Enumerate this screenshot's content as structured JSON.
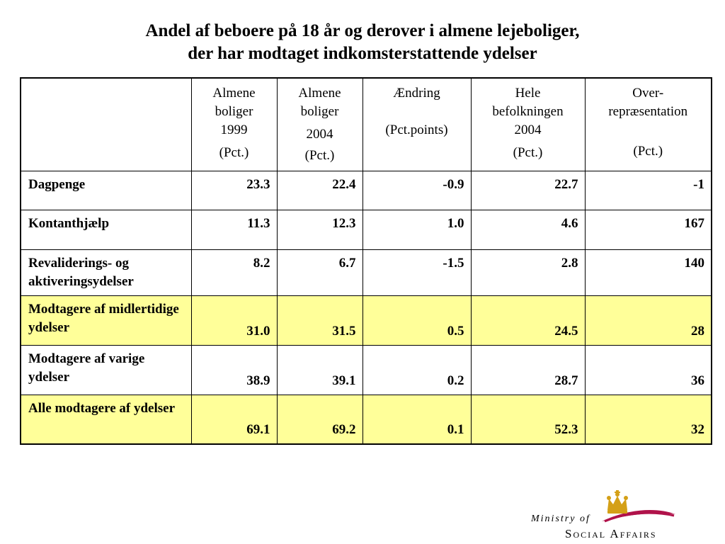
{
  "title": {
    "line1": "Andel af beboere på 18 år og derover i almene lejeboliger,",
    "line2": "der har modtaget indkomsterstattende ydelser"
  },
  "table": {
    "headers": [
      {
        "lines": [
          "Almene",
          "boliger",
          "1999",
          "(Pct.)"
        ]
      },
      {
        "lines": [
          "Almene",
          "boliger",
          "2004",
          "(Pct.)"
        ]
      },
      {
        "lines": [
          "Ændring",
          "",
          "(Pct.points)"
        ]
      },
      {
        "lines": [
          "Hele",
          "befolkningen",
          "2004",
          "(Pct.)"
        ]
      },
      {
        "lines": [
          "Over-",
          "repræsentation",
          "",
          "(Pct.)"
        ]
      }
    ],
    "rows": [
      {
        "label": "Dagpenge",
        "values": [
          "23.3",
          "22.4",
          "-0.9",
          "22.7",
          "-1"
        ],
        "highlight": false,
        "align": "top"
      },
      {
        "label": "Kontanthjælp",
        "values": [
          "11.3",
          "12.3",
          "1.0",
          "4.6",
          "167"
        ],
        "highlight": false,
        "align": "top"
      },
      {
        "label": "Revaliderings- og aktiveringsydelser",
        "values": [
          "8.2",
          "6.7",
          "-1.5",
          "2.8",
          "140"
        ],
        "highlight": false,
        "align": "top"
      },
      {
        "label": "Modtagere af midlertidige ydelser",
        "values": [
          "31.0",
          "31.5",
          "0.5",
          "24.5",
          "28"
        ],
        "highlight": true,
        "align": "bottom"
      },
      {
        "label": "Modtagere af varige ydelser",
        "values": [
          "38.9",
          "39.1",
          "0.2",
          "28.7",
          "36"
        ],
        "highlight": false,
        "align": "bottom"
      },
      {
        "label": "Alle modtagere af ydelser",
        "values": [
          "69.1",
          "69.2",
          "0.1",
          "52.3",
          "32"
        ],
        "highlight": true,
        "align": "bottom"
      }
    ]
  },
  "logo": {
    "ministry_text": "Ministry of",
    "social_text": "Social Affairs",
    "crown_icon": "crown-icon",
    "crown_color": "#d4a017",
    "swoosh_color": "#b0124a",
    "highlight_color": "#ffff99"
  }
}
